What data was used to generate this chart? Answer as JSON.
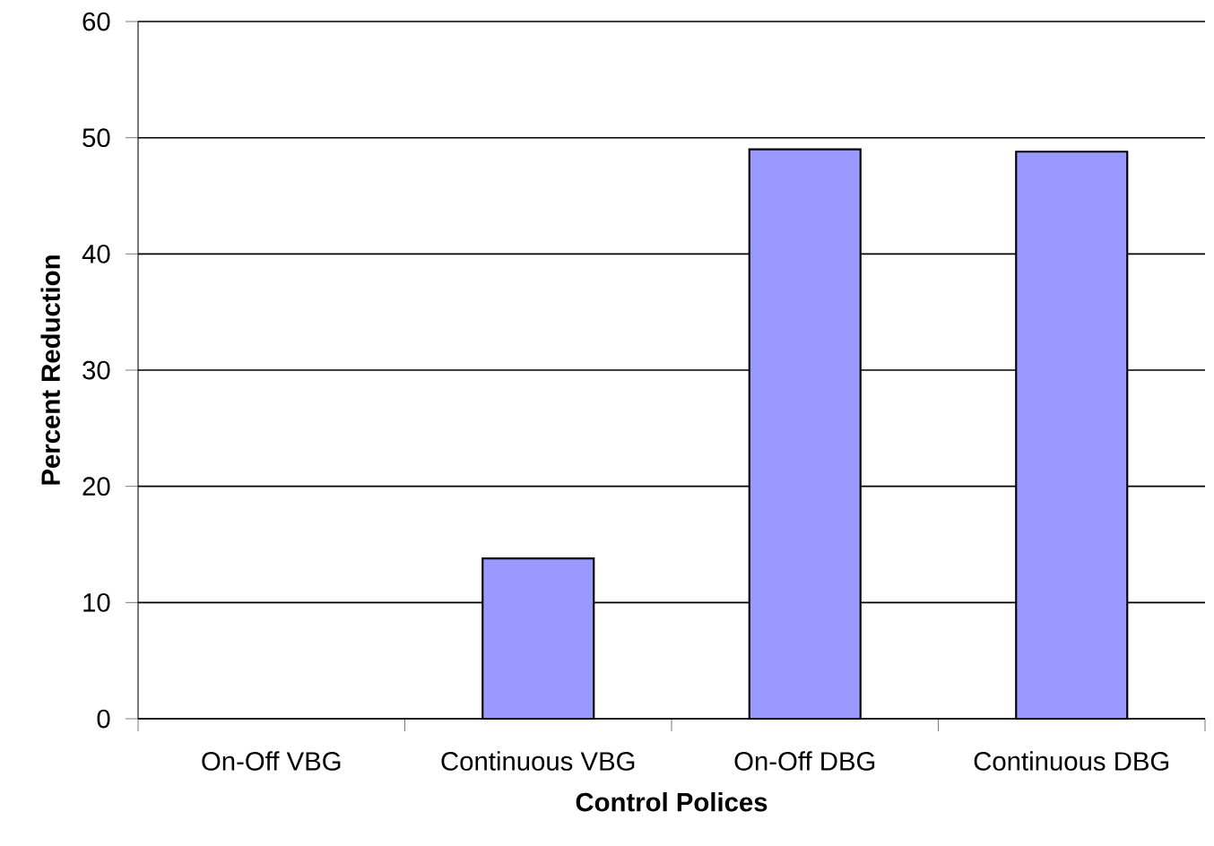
{
  "chart_data": {
    "type": "bar",
    "xlabel": "Control Polices",
    "ylabel": "Percent Reduction",
    "categories": [
      "On-Off VBG",
      "Continuous VBG",
      "On-Off DBG",
      "Continuous DBG"
    ],
    "values": [
      null,
      13.8,
      49.0,
      48.8
    ],
    "color": "#9999ff",
    "ylim": [
      0,
      60
    ],
    "yticks": [
      0,
      10,
      20,
      30,
      40,
      50,
      60
    ],
    "grid": "y"
  }
}
